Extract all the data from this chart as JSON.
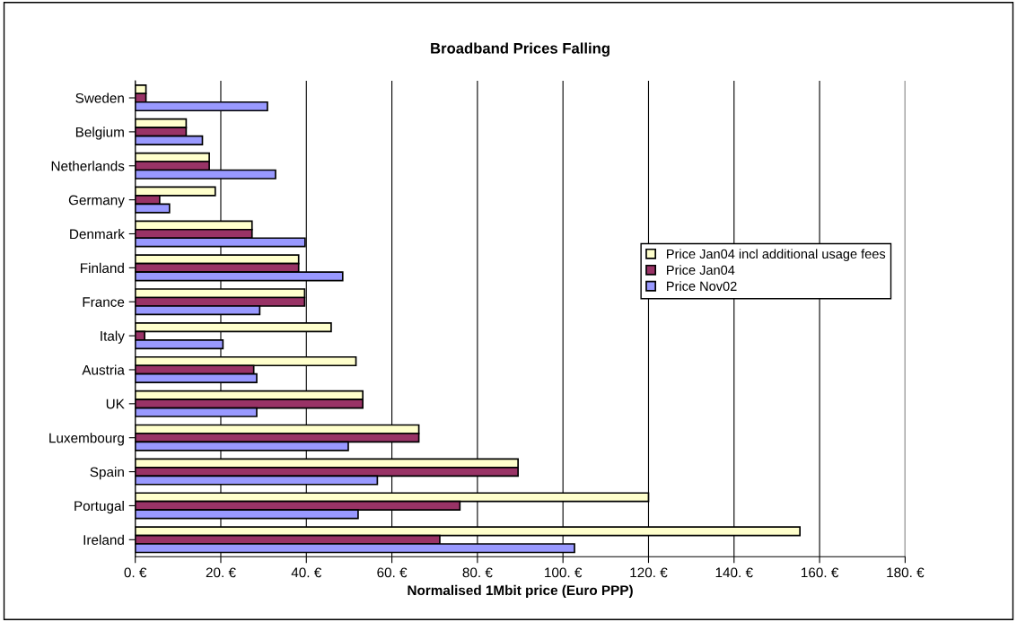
{
  "chart_data": {
    "type": "bar",
    "orientation": "horizontal",
    "title": "Broadband Prices Falling",
    "xlabel": "Normalised 1Mbit price (Euro PPP)",
    "categories": [
      "Sweden",
      "Belgium",
      "Netherlands",
      "Germany",
      "Denmark",
      "Finland",
      "France",
      "Italy",
      "Austria",
      "UK",
      "Luxembourg",
      "Spain",
      "Portugal",
      "Ireland"
    ],
    "series": [
      {
        "name": "Price Jan04 incl additional usage fees",
        "color": "#ffffcc",
        "values": [
          2.5,
          11.9,
          17.3,
          18.7,
          27.3,
          38.2,
          39.6,
          45.8,
          51.6,
          53.2,
          66.3,
          89.5,
          120.0,
          155.4
        ]
      },
      {
        "name": "Price Jan04",
        "color": "#993366",
        "values": [
          2.5,
          11.9,
          17.3,
          5.7,
          27.3,
          38.2,
          39.6,
          2.2,
          27.7,
          53.2,
          66.3,
          89.5,
          75.9,
          71.2
        ]
      },
      {
        "name": "Price Nov02",
        "color": "#9999ff",
        "values": [
          30.9,
          15.7,
          32.8,
          8.0,
          39.7,
          48.5,
          29.1,
          20.5,
          28.4,
          28.4,
          49.8,
          56.6,
          52.1,
          102.7
        ]
      }
    ],
    "xlim": [
      0,
      180
    ],
    "xticks": [
      {
        "value": 0,
        "label": "0. €"
      },
      {
        "value": 20,
        "label": "20. €"
      },
      {
        "value": 40,
        "label": "40. €"
      },
      {
        "value": 60,
        "label": "60. €"
      },
      {
        "value": 80,
        "label": "80. €"
      },
      {
        "value": 100,
        "label": "100. €"
      },
      {
        "value": 120,
        "label": "120. €"
      },
      {
        "value": 140,
        "label": "140. €"
      },
      {
        "value": 160,
        "label": "160. €"
      },
      {
        "value": 180,
        "label": "180. €"
      }
    ],
    "grid": "x",
    "legend": "right"
  }
}
